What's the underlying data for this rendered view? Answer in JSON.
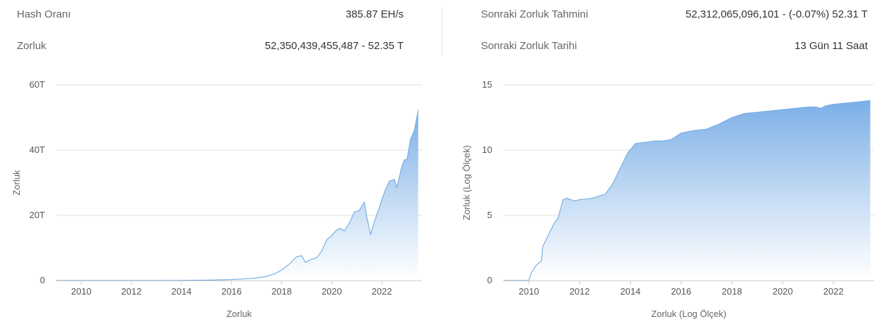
{
  "stats": {
    "hash_rate_label": "Hash Oranı",
    "hash_rate_value": "385.87 EH/s",
    "difficulty_label": "Zorluk",
    "difficulty_value": "52,350,439,455,487 - 52.35 T",
    "next_estimate_label": "Sonraki Zorluk Tahmini",
    "next_estimate_value": "52,312,065,096,101 - (-0.07%) 52.31 T",
    "next_date_label": "Sonraki Zorluk Tarihi",
    "next_date_value": "13 Gün 11 Saat"
  },
  "colors": {
    "line": "#7aaee6",
    "fill_top": "#7aaee6",
    "fill_bottom": "#ffffff",
    "grid": "#e0e0e0"
  },
  "chart_data": [
    {
      "type": "area",
      "xlabel": "Zorluk",
      "ylabel": "Zorluk",
      "xlim": [
        2009.0,
        2023.6
      ],
      "ylim": [
        0,
        60
      ],
      "x_ticks": [
        "2010",
        "2012",
        "2014",
        "2016",
        "2018",
        "2020",
        "2022"
      ],
      "y_ticks": [
        "0",
        "20T",
        "40T",
        "60T"
      ],
      "y_tick_values": [
        0,
        20,
        40,
        60
      ],
      "grid": true,
      "x": [
        2009.0,
        2012.0,
        2014.0,
        2015.0,
        2016.0,
        2016.8,
        2017.3,
        2017.7,
        2018.0,
        2018.3,
        2018.6,
        2018.8,
        2018.95,
        2019.1,
        2019.4,
        2019.6,
        2019.8,
        2020.0,
        2020.2,
        2020.35,
        2020.5,
        2020.7,
        2020.9,
        2021.1,
        2021.3,
        2021.4,
        2021.55,
        2021.7,
        2021.9,
        2022.1,
        2022.3,
        2022.5,
        2022.6,
        2022.8,
        2022.9,
        2023.0,
        2023.15,
        2023.3,
        2023.45
      ],
      "y": [
        0,
        0.002,
        0.05,
        0.1,
        0.3,
        0.6,
        1.1,
        2.0,
        3.2,
        5.0,
        7.3,
        7.6,
        5.5,
        6.2,
        7.0,
        9.0,
        12.5,
        13.8,
        15.5,
        16.0,
        15.2,
        17.5,
        21.0,
        21.5,
        24.0,
        19.5,
        14.0,
        18.0,
        22.5,
        27.0,
        30.5,
        31.0,
        28.5,
        35.0,
        37.0,
        37.0,
        43.5,
        46.0,
        52.35
      ]
    },
    {
      "type": "area",
      "xlabel": "Zorluk (Log Ölçek)",
      "ylabel": "Zorluk (Log Ölçek)",
      "xlim": [
        2009.0,
        2023.6
      ],
      "ylim": [
        0,
        15
      ],
      "x_ticks": [
        "2010",
        "2012",
        "2014",
        "2016",
        "2018",
        "2020",
        "2022"
      ],
      "y_ticks": [
        "0",
        "5",
        "10",
        "15"
      ],
      "y_tick_values": [
        0,
        5,
        10,
        15
      ],
      "grid": true,
      "x": [
        2009.0,
        2010.0,
        2010.1,
        2010.3,
        2010.5,
        2010.55,
        2010.8,
        2011.0,
        2011.15,
        2011.35,
        2011.5,
        2011.8,
        2012.0,
        2012.5,
        2012.8,
        2013.0,
        2013.3,
        2013.6,
        2013.9,
        2014.2,
        2014.6,
        2015.0,
        2015.3,
        2015.6,
        2016.0,
        2016.5,
        2017.0,
        2017.5,
        2018.0,
        2018.5,
        2019.0,
        2019.5,
        2020.0,
        2020.5,
        2021.0,
        2021.3,
        2021.5,
        2021.7,
        2022.0,
        2022.5,
        2023.0,
        2023.45
      ],
      "y": [
        0,
        0,
        0.6,
        1.2,
        1.5,
        2.6,
        3.6,
        4.4,
        4.8,
        6.2,
        6.3,
        6.1,
        6.2,
        6.3,
        6.5,
        6.6,
        7.4,
        8.6,
        9.8,
        10.5,
        10.6,
        10.7,
        10.7,
        10.8,
        11.3,
        11.5,
        11.6,
        12.0,
        12.5,
        12.8,
        12.9,
        13.0,
        13.1,
        13.2,
        13.3,
        13.3,
        13.2,
        13.4,
        13.5,
        13.6,
        13.7,
        13.8
      ]
    }
  ]
}
